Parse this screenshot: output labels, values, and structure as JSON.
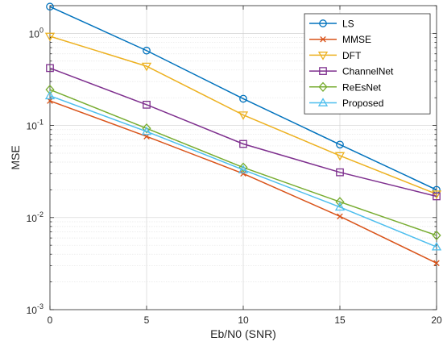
{
  "chart_data": {
    "type": "line",
    "xlabel": "Eb/N0 (SNR)",
    "ylabel": "MSE",
    "x": [
      0,
      5,
      10,
      15,
      20
    ],
    "xlim": [
      0,
      20
    ],
    "ylim": [
      0.001,
      2
    ],
    "yscale": "log",
    "grid": true,
    "legend_position": "top-right",
    "x_ticks": [
      "0",
      "5",
      "10",
      "15",
      "20"
    ],
    "y_ticks": [
      {
        "value": 0.001,
        "base": "10",
        "exp": "-3"
      },
      {
        "value": 0.01,
        "base": "10",
        "exp": "-2"
      },
      {
        "value": 0.1,
        "base": "10",
        "exp": "-1"
      },
      {
        "value": 1,
        "base": "10",
        "exp": "0"
      }
    ],
    "series": [
      {
        "name": "LS",
        "color": "#0072BD",
        "marker": "circle",
        "values": [
          1.95,
          0.65,
          0.195,
          0.062,
          0.02
        ]
      },
      {
        "name": "MMSE",
        "color": "#D95319",
        "marker": "x",
        "values": [
          0.185,
          0.076,
          0.03,
          0.0103,
          0.0032
        ]
      },
      {
        "name": "DFT",
        "color": "#EDB120",
        "marker": "triangle-down",
        "values": [
          0.93,
          0.44,
          0.13,
          0.047,
          0.018
        ]
      },
      {
        "name": "ChannelNet",
        "color": "#7E2F8E",
        "marker": "square",
        "values": [
          0.42,
          0.168,
          0.063,
          0.031,
          0.017
        ]
      },
      {
        "name": "ReEsNet",
        "color": "#77AC30",
        "marker": "diamond",
        "values": [
          0.245,
          0.093,
          0.035,
          0.0148,
          0.0064
        ]
      },
      {
        "name": "Proposed",
        "color": "#4DBEEE",
        "marker": "triangle-up",
        "values": [
          0.21,
          0.086,
          0.033,
          0.013,
          0.0048
        ]
      }
    ]
  }
}
